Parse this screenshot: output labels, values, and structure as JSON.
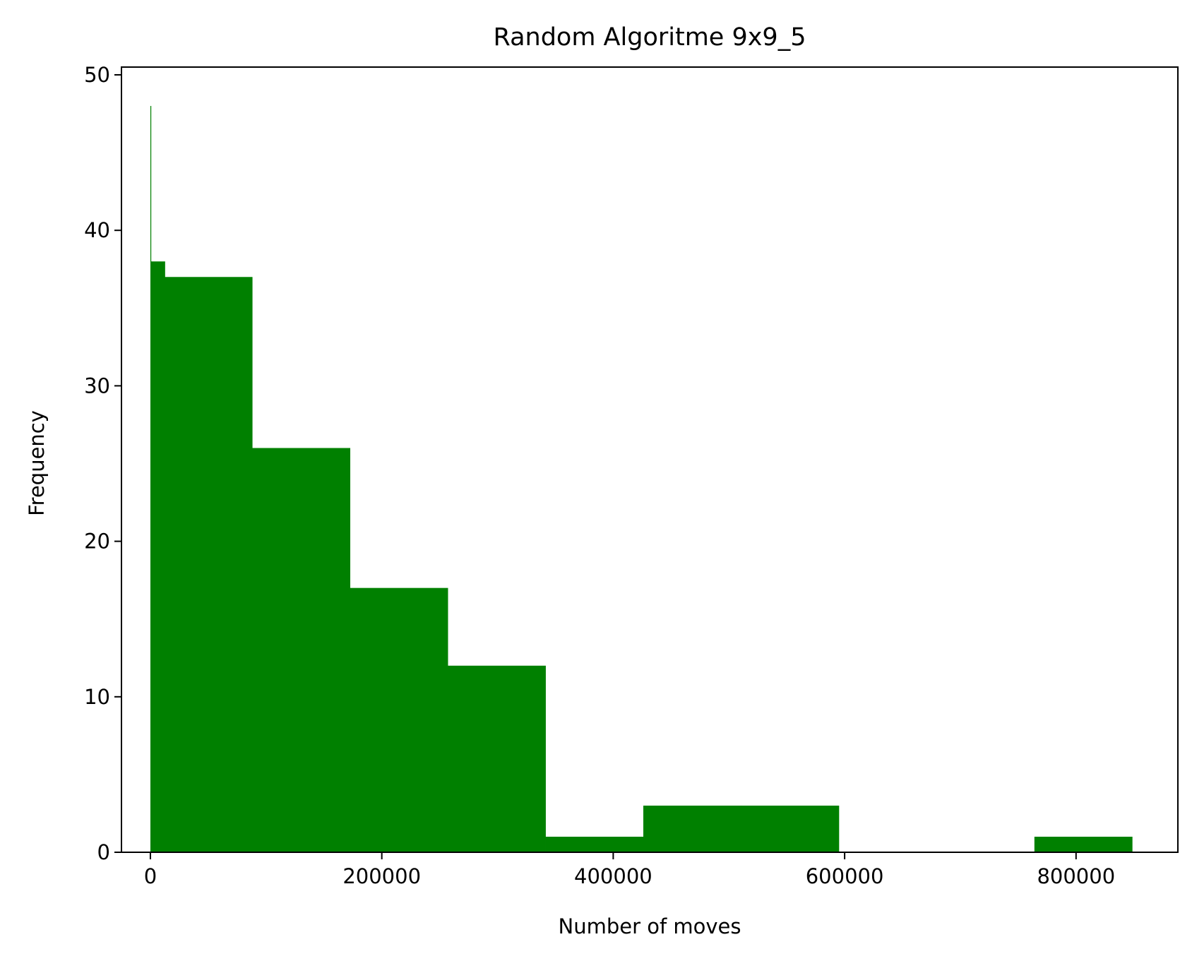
{
  "chart_data": {
    "type": "bar",
    "title": "Random Algoritme 9x9_5",
    "xlabel": "Number of moves",
    "ylabel": "Frequency",
    "xlim": [
      -25000,
      888000
    ],
    "ylim": [
      0,
      50.5
    ],
    "x_ticks": [
      0,
      200000,
      400000,
      600000,
      800000
    ],
    "x_tick_labels": [
      "0",
      "200000",
      "400000",
      "600000",
      "800000"
    ],
    "y_ticks": [
      0,
      10,
      20,
      30,
      40,
      50
    ],
    "y_tick_labels": [
      "0",
      "10",
      "20",
      "30",
      "40",
      "50"
    ],
    "grid": false,
    "legend": "none",
    "bar_color": "#008000",
    "bins": [
      {
        "x0": 0,
        "x1": 500,
        "value": 48
      },
      {
        "x0": 500,
        "x1": 12500,
        "value": 38
      },
      {
        "x0": 12500,
        "x1": 88000,
        "value": 37
      },
      {
        "x0": 88000,
        "x1": 172500,
        "value": 26
      },
      {
        "x0": 172500,
        "x1": 257000,
        "value": 17
      },
      {
        "x0": 257000,
        "x1": 341500,
        "value": 12
      },
      {
        "x0": 341500,
        "x1": 426000,
        "value": 1
      },
      {
        "x0": 426000,
        "x1": 510500,
        "value": 3
      },
      {
        "x0": 510500,
        "x1": 595000,
        "value": 3
      },
      {
        "x0": 595000,
        "x1": 679500,
        "value": 0
      },
      {
        "x0": 679500,
        "x1": 764000,
        "value": 0
      },
      {
        "x0": 764000,
        "x1": 848500,
        "value": 1
      }
    ]
  }
}
